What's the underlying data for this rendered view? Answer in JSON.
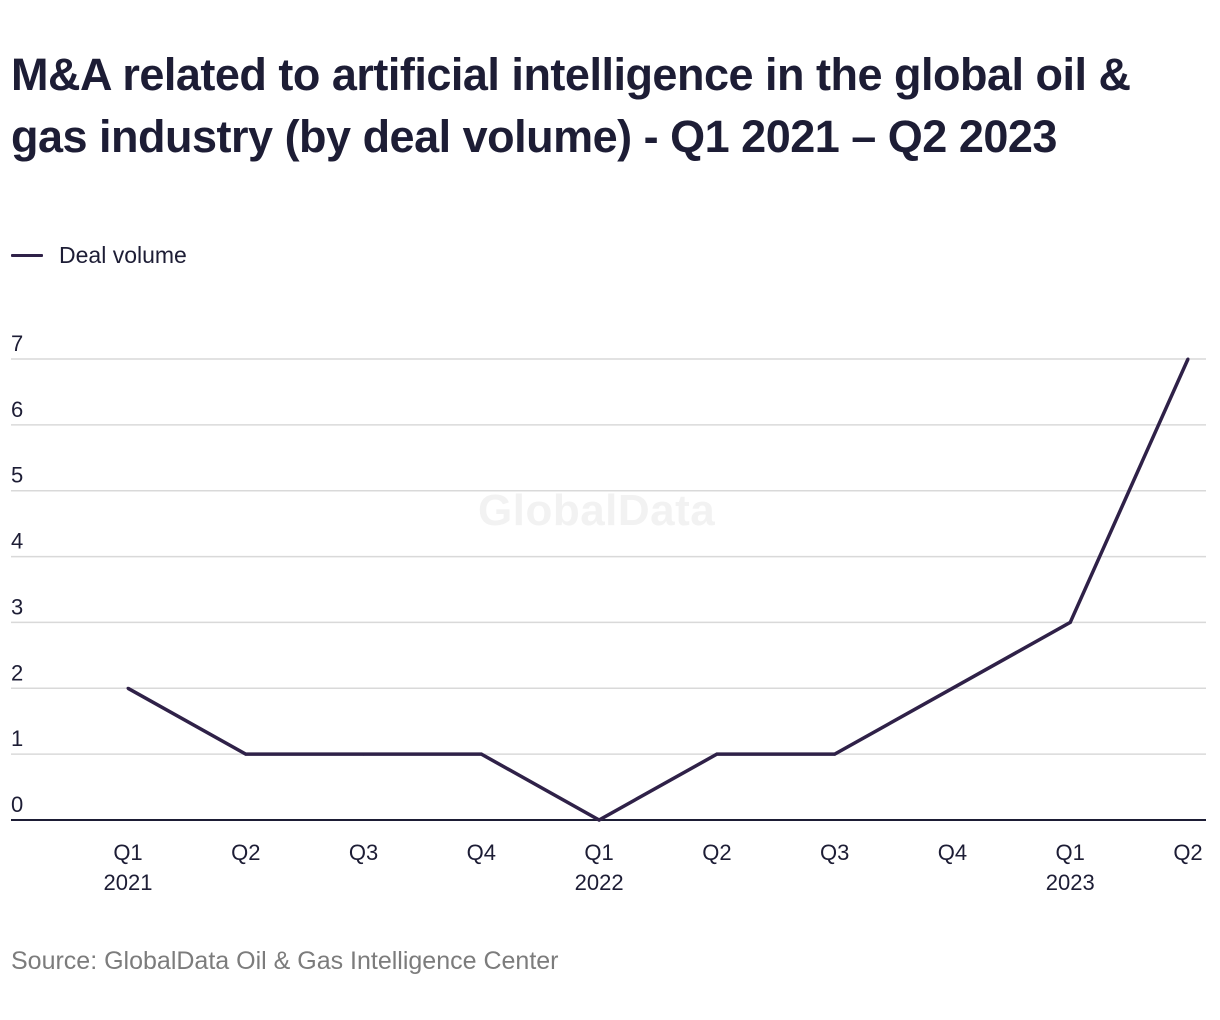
{
  "title": "M&A related to artificial intelligence in the global oil & gas industry (by deal volume) - Q1 2021 – Q2 2023",
  "legend": {
    "label": "Deal volume"
  },
  "watermark": "GlobalData",
  "source": "Source: GlobalData Oil & Gas Intelligence Center",
  "colors": {
    "line": "#2f2148",
    "grid": "#d9d9d9",
    "axis": "#1d1d35",
    "tick_text": "#1d1d35"
  },
  "chart_data": {
    "type": "line",
    "title": "M&A related to artificial intelligence in the global oil & gas industry (by deal volume) - Q1 2021 – Q2 2023",
    "categories": [
      {
        "quarter": "Q1",
        "year": "2021"
      },
      {
        "quarter": "Q2",
        "year": ""
      },
      {
        "quarter": "Q3",
        "year": ""
      },
      {
        "quarter": "Q4",
        "year": ""
      },
      {
        "quarter": "Q1",
        "year": "2022"
      },
      {
        "quarter": "Q2",
        "year": ""
      },
      {
        "quarter": "Q3",
        "year": ""
      },
      {
        "quarter": "Q4",
        "year": ""
      },
      {
        "quarter": "Q1",
        "year": "2023"
      },
      {
        "quarter": "Q2",
        "year": ""
      }
    ],
    "series": [
      {
        "name": "Deal volume",
        "values": [
          2,
          1,
          1,
          1,
          0,
          1,
          1,
          2,
          3,
          7
        ]
      }
    ],
    "ylim": [
      0,
      7
    ],
    "yticks": [
      0,
      1,
      2,
      3,
      4,
      5,
      6,
      7
    ],
    "grid": true,
    "legend_position": "top-left",
    "xlabel": "",
    "ylabel": ""
  }
}
